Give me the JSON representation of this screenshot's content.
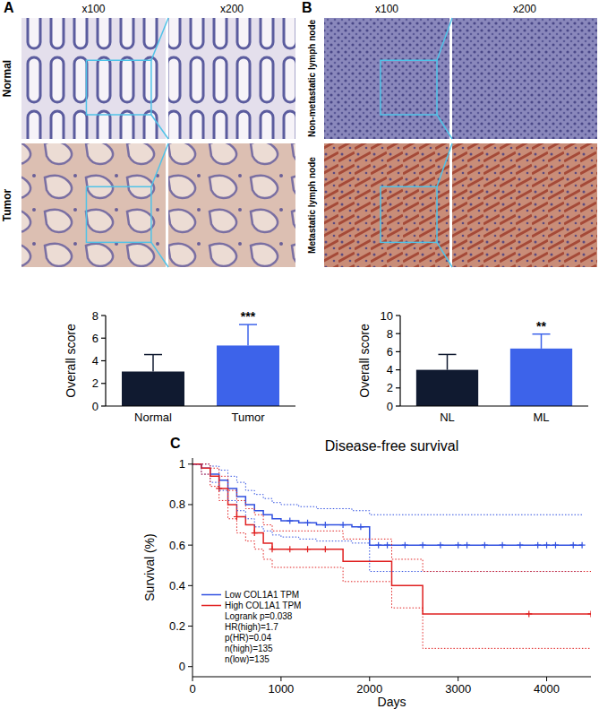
{
  "figure": {
    "panel_labels": [
      "A",
      "B",
      "C"
    ],
    "panel_a": {
      "columns": [
        "x100",
        "x200"
      ],
      "rows": [
        "Normal",
        "Tumor"
      ]
    },
    "panel_b": {
      "columns": [
        "x100",
        "x200"
      ],
      "rows": [
        "Non-metastatic lymph node",
        "Metastatic lymph node"
      ]
    }
  },
  "chart_data": [
    {
      "type": "bar",
      "categories": [
        "Normal",
        "Tumor"
      ],
      "values": [
        3.05,
        5.35
      ],
      "errors": [
        1.5,
        1.85
      ],
      "colors": [
        "#101a30",
        "#3d63ea"
      ],
      "y_label": "Overall score",
      "ylim": [
        0,
        8
      ],
      "yticks": [
        0,
        2,
        4,
        6,
        8
      ],
      "annotations": [
        {
          "text": "***",
          "category": 1
        }
      ]
    },
    {
      "type": "bar",
      "categories": [
        "NL",
        "ML"
      ],
      "values": [
        4.0,
        6.35
      ],
      "errors": [
        1.7,
        1.6
      ],
      "colors": [
        "#101a30",
        "#3d63ea"
      ],
      "y_label": "Overall score",
      "ylim": [
        0,
        10
      ],
      "yticks": [
        0,
        2,
        4,
        6,
        8,
        10
      ],
      "annotations": [
        {
          "text": "**",
          "category": 1
        }
      ]
    },
    {
      "type": "line",
      "title": "Disease-free survival",
      "x_label": "Days",
      "y_label": "Survival (%)",
      "xlim": [
        0,
        4500
      ],
      "xticks": [
        0,
        1000,
        2000,
        3000,
        4000
      ],
      "ylim": [
        -0.05,
        1.03
      ],
      "yticks": [
        0,
        0.2,
        0.4,
        0.6,
        0.8,
        1
      ],
      "legend": "lower left",
      "legend_notes": [
        "Logrank p=0.038",
        "HR(high)=1.7",
        "p(HR)=0.04",
        "n(high)=135",
        "n(low)=135"
      ],
      "series": [
        {
          "name": "Low COL1A1 TPM",
          "color": "#3050e0",
          "line_style": "solid",
          "marker": "plus",
          "x": [
            0,
            100,
            200,
            300,
            400,
            500,
            600,
            700,
            800,
            900,
            1000,
            1200,
            1400,
            1600,
            1800,
            2000,
            2300,
            4400
          ],
          "values": [
            1,
            0.98,
            0.95,
            0.92,
            0.88,
            0.84,
            0.8,
            0.77,
            0.75,
            0.73,
            0.72,
            0.71,
            0.7,
            0.7,
            0.69,
            0.6,
            0.6,
            0.6
          ],
          "censored_x": [
            1100,
            1300,
            1500,
            1700,
            1900,
            2100,
            2200,
            2400,
            2600,
            2800,
            3000,
            3100,
            3300,
            3500,
            3700,
            3900,
            4000,
            4100,
            4300,
            4400
          ]
        },
        {
          "name": "High COL1A1 TPM",
          "color": "#e02020",
          "line_style": "solid",
          "marker": "plus",
          "x": [
            0,
            100,
            200,
            300,
            400,
            500,
            600,
            700,
            800,
            900,
            1000,
            1700,
            2250,
            2600,
            4500
          ],
          "values": [
            1,
            0.98,
            0.94,
            0.88,
            0.8,
            0.74,
            0.7,
            0.66,
            0.61,
            0.58,
            0.58,
            0.52,
            0.4,
            0.26,
            0.26
          ],
          "censored_x": [
            300,
            500,
            700,
            900,
            1100,
            1300,
            1500,
            3800,
            4500
          ]
        },
        {
          "color": "#3050e0",
          "line_style": "dotted",
          "x": [
            0,
            100,
            200,
            300,
            400,
            500,
            600,
            700,
            800,
            900,
            1000,
            1200,
            1400,
            1600,
            1800,
            2000,
            2300,
            4400
          ],
          "values": [
            1,
            1,
            0.99,
            0.97,
            0.94,
            0.91,
            0.87,
            0.85,
            0.83,
            0.81,
            0.8,
            0.79,
            0.78,
            0.78,
            0.77,
            0.75,
            0.75,
            0.75
          ]
        },
        {
          "color": "#3050e0",
          "line_style": "dotted",
          "x": [
            0,
            100,
            200,
            300,
            400,
            500,
            600,
            700,
            800,
            900,
            1000,
            1200,
            1400,
            1600,
            1800,
            2000,
            2300,
            4400
          ],
          "values": [
            1,
            0.95,
            0.91,
            0.87,
            0.82,
            0.77,
            0.73,
            0.69,
            0.67,
            0.65,
            0.64,
            0.63,
            0.62,
            0.62,
            0.61,
            0.47,
            0.47,
            0.47
          ]
        },
        {
          "color": "#e02020",
          "line_style": "dotted",
          "x": [
            0,
            100,
            200,
            300,
            400,
            500,
            600,
            700,
            800,
            900,
            1000,
            1700,
            2250,
            2600,
            4500
          ],
          "values": [
            1,
            1,
            0.98,
            0.94,
            0.87,
            0.82,
            0.78,
            0.75,
            0.7,
            0.67,
            0.67,
            0.63,
            0.53,
            0.47,
            0.47
          ]
        },
        {
          "color": "#e02020",
          "line_style": "dotted",
          "x": [
            0,
            100,
            200,
            300,
            400,
            500,
            600,
            700,
            800,
            900,
            1000,
            1700,
            2250,
            2600,
            4500
          ],
          "values": [
            1,
            0.95,
            0.89,
            0.82,
            0.73,
            0.66,
            0.62,
            0.58,
            0.53,
            0.49,
            0.49,
            0.42,
            0.29,
            0.09,
            0.09
          ]
        }
      ]
    }
  ]
}
